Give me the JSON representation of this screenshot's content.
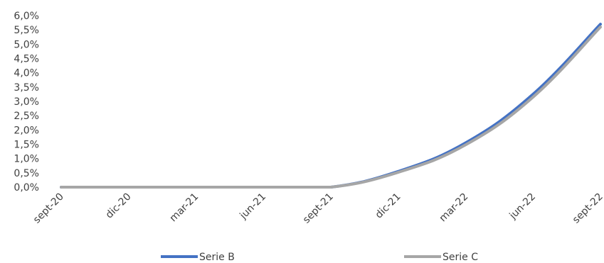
{
  "chart_data": {
    "type": "line",
    "title": "",
    "xlabel": "",
    "ylabel": "",
    "x": [
      "sept-20",
      "dic-20",
      "mar-21",
      "jun-21",
      "sept-21",
      "dic-21",
      "mar-22",
      "jun-22",
      "sept-22"
    ],
    "y_ticks": [
      "0,0%",
      "0,5%",
      "1,0%",
      "1,5%",
      "2,0%",
      "2,5%",
      "3,0%",
      "3,5%",
      "4,0%",
      "4,5%",
      "5,0%",
      "5,5%",
      "6,0%"
    ],
    "ylim": [
      0,
      6
    ],
    "grid": false,
    "legend_position": "bottom",
    "series": [
      {
        "name": "Serie B",
        "color": "#4472C4",
        "values": [
          0.0,
          0.0,
          0.0,
          0.0,
          0.0,
          0.55,
          1.55,
          3.25,
          5.7
        ]
      },
      {
        "name": "Serie C",
        "color": "#A6A6A6",
        "values": [
          0.0,
          0.0,
          0.0,
          0.0,
          0.0,
          0.52,
          1.48,
          3.15,
          5.6
        ]
      }
    ]
  }
}
